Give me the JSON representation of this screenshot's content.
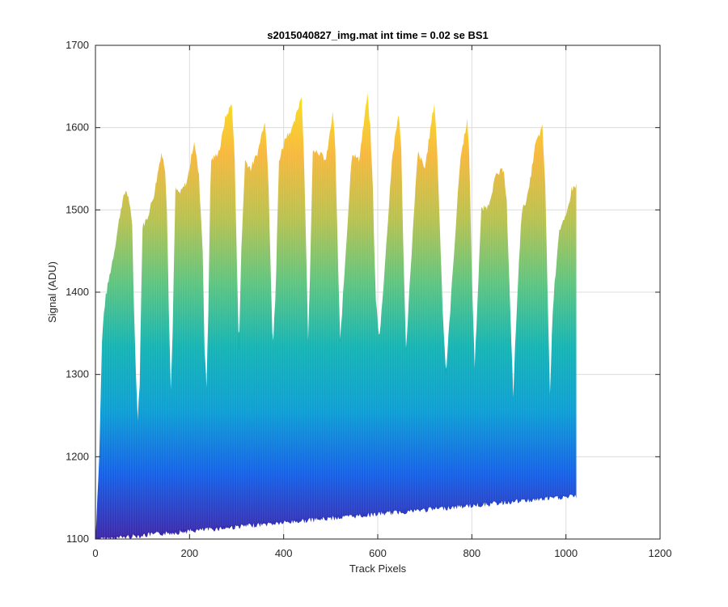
{
  "chart_data": {
    "type": "area",
    "title": "s2015040827_img.mat int time = 0.02 se   BS1",
    "xlabel": "Track Pixels",
    "ylabel": "Signal (ADU)",
    "xlim": [
      0,
      1200
    ],
    "ylim": [
      1100,
      1700
    ],
    "xticks": [
      0,
      200,
      400,
      600,
      800,
      1000,
      1200
    ],
    "yticks": [
      1100,
      1200,
      1300,
      1400,
      1500,
      1600,
      1700
    ],
    "grid": true,
    "colormap": [
      "#3e26a8",
      "#1560e8",
      "#0c9fd4",
      "#14b4b4",
      "#5ec57f",
      "#b9c24f",
      "#f7b83c",
      "#f9e21b"
    ],
    "upper_envelope": {
      "x": [
        0,
        8,
        14,
        18,
        22,
        30,
        40,
        55,
        65,
        72,
        78,
        82,
        86,
        90,
        94,
        100,
        110,
        125,
        140,
        148,
        152,
        156,
        160,
        164,
        170,
        180,
        195,
        210,
        220,
        228,
        232,
        236,
        240,
        245,
        255,
        265,
        275,
        290,
        296,
        300,
        305,
        310,
        318,
        330,
        345,
        360,
        367,
        372,
        377,
        383,
        390,
        405,
        420,
        438,
        443,
        448,
        452,
        456,
        462,
        475,
        490,
        505,
        510,
        515,
        520,
        530,
        545,
        560,
        578,
        584,
        590,
        595,
        603,
        615,
        630,
        645,
        650,
        655,
        660,
        670,
        685,
        700,
        720,
        725,
        732,
        738,
        745,
        760,
        775,
        790,
        795,
        800,
        806,
        812,
        820,
        835,
        850,
        868,
        874,
        879,
        884,
        888,
        894,
        905,
        920,
        935,
        950,
        956,
        961,
        966,
        972,
        985,
        1000,
        1012,
        1022,
        1023
      ],
      "y": [
        1100,
        1200,
        1340,
        1375,
        1395,
        1420,
        1450,
        1505,
        1525,
        1510,
        1480,
        1380,
        1300,
        1248,
        1290,
        1480,
        1490,
        1520,
        1570,
        1550,
        1500,
        1380,
        1280,
        1350,
        1525,
        1520,
        1535,
        1585,
        1540,
        1450,
        1330,
        1285,
        1380,
        1560,
        1565,
        1575,
        1610,
        1630,
        1560,
        1450,
        1330,
        1450,
        1560,
        1550,
        1570,
        1610,
        1550,
        1440,
        1330,
        1400,
        1560,
        1590,
        1600,
        1640,
        1570,
        1450,
        1340,
        1420,
        1575,
        1570,
        1560,
        1620,
        1570,
        1450,
        1340,
        1430,
        1570,
        1560,
        1640,
        1600,
        1520,
        1400,
        1340,
        1430,
        1560,
        1620,
        1570,
        1440,
        1330,
        1430,
        1570,
        1550,
        1630,
        1590,
        1480,
        1380,
        1300,
        1430,
        1560,
        1610,
        1560,
        1420,
        1310,
        1390,
        1500,
        1505,
        1540,
        1550,
        1510,
        1420,
        1340,
        1275,
        1360,
        1495,
        1520,
        1580,
        1600,
        1530,
        1400,
        1275,
        1380,
        1475,
        1490,
        1525,
        1530,
        1155
      ]
    },
    "lower_envelope": {
      "x": [
        0,
        1023
      ],
      "y": [
        1102,
        1155
      ]
    }
  }
}
